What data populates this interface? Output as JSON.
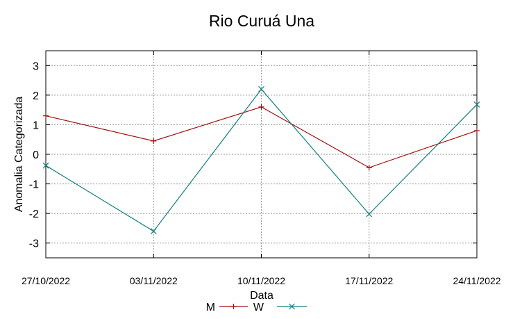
{
  "chart_data": {
    "type": "line",
    "title": "Rio Curuá Una",
    "xlabel": "Data",
    "ylabel": "Anomalia Categorizada",
    "categories": [
      "27/10/2022",
      "03/11/2022",
      "10/11/2022",
      "17/11/2022",
      "24/11/2022"
    ],
    "ylim": [
      -3.5,
      3.5
    ],
    "yticks": [
      "3",
      "2",
      "1",
      "0",
      "-1",
      "-2",
      "-3"
    ],
    "grid": true,
    "legend_position": "bottom-center",
    "series": [
      {
        "name": "M",
        "marker": "plus",
        "color": "#a01010",
        "values": [
          1.3,
          0.45,
          1.6,
          -0.45,
          0.8
        ]
      },
      {
        "name": "W",
        "marker": "x",
        "color": "#108080",
        "values": [
          -0.38,
          -2.6,
          2.2,
          -2.02,
          1.68
        ]
      }
    ]
  }
}
